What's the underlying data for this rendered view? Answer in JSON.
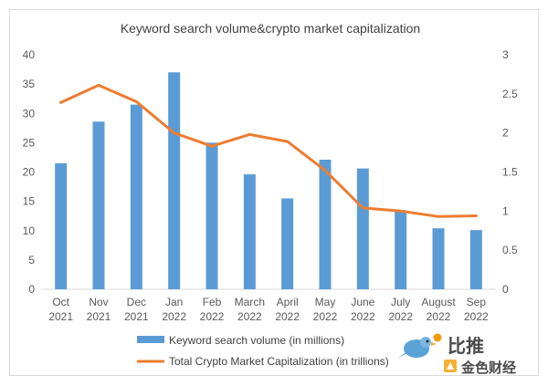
{
  "chart_data": {
    "type": "bar+line",
    "title": "Keyword search volume&crypto market capitalization",
    "categories": [
      [
        "Oct",
        "2021"
      ],
      [
        "Nov",
        "2021"
      ],
      [
        "Dec",
        "2021"
      ],
      [
        "Jan",
        "2022"
      ],
      [
        "Feb",
        "2022"
      ],
      [
        "March",
        "2022"
      ],
      [
        "April",
        "2022"
      ],
      [
        "May",
        "2022"
      ],
      [
        "June",
        "2022"
      ],
      [
        "July",
        "2022"
      ],
      [
        "August",
        "2022"
      ],
      [
        "Sep",
        "2022"
      ]
    ],
    "series": [
      {
        "name": "Keyword search volume (in millions)",
        "type": "bar",
        "axis": "left",
        "color": "#5b9bd5",
        "values": [
          21.5,
          28.6,
          31.5,
          37.0,
          25.0,
          19.6,
          15.5,
          22.1,
          20.6,
          13.5,
          10.4,
          10.1
        ]
      },
      {
        "name": "Total Crypto Market Capitalization (in trillions)",
        "type": "line",
        "axis": "right",
        "color": "#ed7d31",
        "values": [
          2.39,
          2.61,
          2.4,
          2.0,
          1.83,
          1.98,
          1.89,
          1.52,
          1.04,
          1.0,
          0.93,
          0.94
        ]
      }
    ],
    "left_axis": {
      "min": 0,
      "max": 40,
      "ticks": [
        "0",
        "5",
        "10",
        "15",
        "20",
        "25",
        "30",
        "35",
        "40"
      ]
    },
    "right_axis": {
      "min": 0,
      "max": 3,
      "ticks": [
        "0",
        "0.5",
        "1",
        "1.5",
        "2",
        "2.5",
        "3"
      ]
    },
    "grid": false,
    "legend_position": "bottom"
  },
  "watermark": {
    "line1": "比推",
    "line2": "金色财经"
  }
}
